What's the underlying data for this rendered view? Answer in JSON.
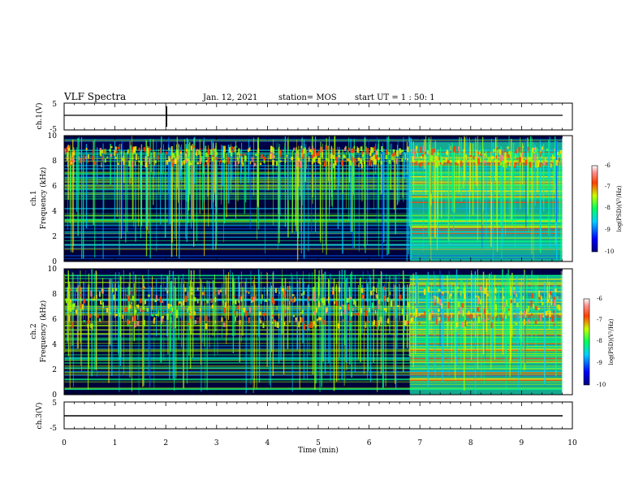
{
  "header": {
    "title": "VLF Spectra",
    "date": "Jan. 12, 2021",
    "station": "station= MOS",
    "start_ut": "start  UT =  1 : 50: 1"
  },
  "chart_data": {
    "type": "heatmap",
    "x_axis": {
      "label": "Time (min)",
      "range": [
        0,
        10
      ],
      "ticks": [
        "0",
        "1",
        "2",
        "3",
        "4",
        "5",
        "6",
        "7",
        "8",
        "9",
        "10"
      ]
    },
    "panels": [
      {
        "id": "ch1-waveform",
        "type": "line",
        "ylabel": "ch.1(V)",
        "ylim": [
          -5,
          5
        ],
        "yticks": [
          "5",
          "-5"
        ],
        "trace_level_v": 0
      },
      {
        "id": "ch1-spectrogram",
        "type": "heatmap",
        "ylabel_line1": "ch.1",
        "ylabel_line2": "Frequency (kHz)",
        "ylim": [
          0,
          10
        ],
        "yticks": [
          "0",
          "2",
          "4",
          "6",
          "8",
          "10"
        ],
        "colorbar_label": "log(PSD)(V²/Hz)",
        "colorbar_ticks": [
          "-6",
          "-7",
          "-8",
          "-9",
          "-10"
        ],
        "colorbar_range": [
          -10,
          -6
        ]
      },
      {
        "id": "ch2-spectrogram",
        "type": "heatmap",
        "ylabel_line1": "ch.2",
        "ylabel_line2": "Frequency (kHz)",
        "ylim": [
          0,
          10
        ],
        "yticks": [
          "0",
          "2",
          "4",
          "6",
          "8",
          "10"
        ],
        "colorbar_label": "log(PSD)(V²/Hz)",
        "colorbar_ticks": [
          "-6",
          "-7",
          "-8",
          "-9",
          "-10"
        ],
        "colorbar_range": [
          -10,
          -6
        ]
      },
      {
        "id": "ch3-waveform",
        "type": "line",
        "ylabel": "ch.3(V)",
        "ylim": [
          -5,
          5
        ],
        "yticks": [
          "5",
          "-5"
        ],
        "trace_level_v": 0
      }
    ]
  }
}
